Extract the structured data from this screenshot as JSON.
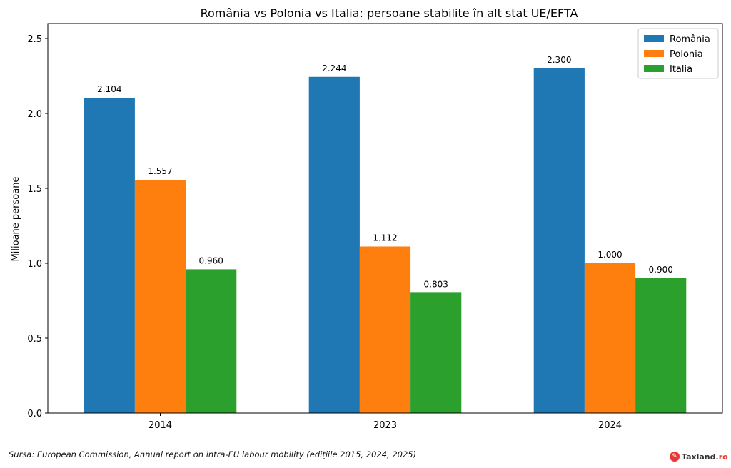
{
  "chart_data": {
    "type": "bar",
    "title": "România vs Polonia vs Italia: persoane stabilite în alt stat UE/EFTA",
    "xlabel": "",
    "ylabel": "Milioane persoane",
    "categories": [
      "2014",
      "2023",
      "2024"
    ],
    "series": [
      {
        "name": "România",
        "color": "#1f77b4",
        "values": [
          2.104,
          2.244,
          2.3
        ],
        "labels": [
          "2.104",
          "2.244",
          "2.300"
        ]
      },
      {
        "name": "Polonia",
        "color": "#ff7f0e",
        "values": [
          1.557,
          1.112,
          1.0
        ],
        "labels": [
          "1.557",
          "1.112",
          "1.000"
        ]
      },
      {
        "name": "Italia",
        "color": "#2ca02c",
        "values": [
          0.96,
          0.803,
          0.9
        ],
        "labels": [
          "0.960",
          "0.803",
          "0.900"
        ]
      }
    ],
    "ylim": [
      0,
      2.6
    ],
    "yticks": [
      "0.0",
      "0.5",
      "1.0",
      "1.5",
      "2.0",
      "2.5"
    ],
    "legend_position": "top-right",
    "grid": false
  },
  "footer": {
    "source": "Sursa: European Commission, Annual report on intra-EU labour mobility (edițiile 2015, 2024, 2025)",
    "brand_name": "Taxland",
    "brand_suffix": ".ro",
    "brand_icon": "taxland-logo-icon"
  }
}
